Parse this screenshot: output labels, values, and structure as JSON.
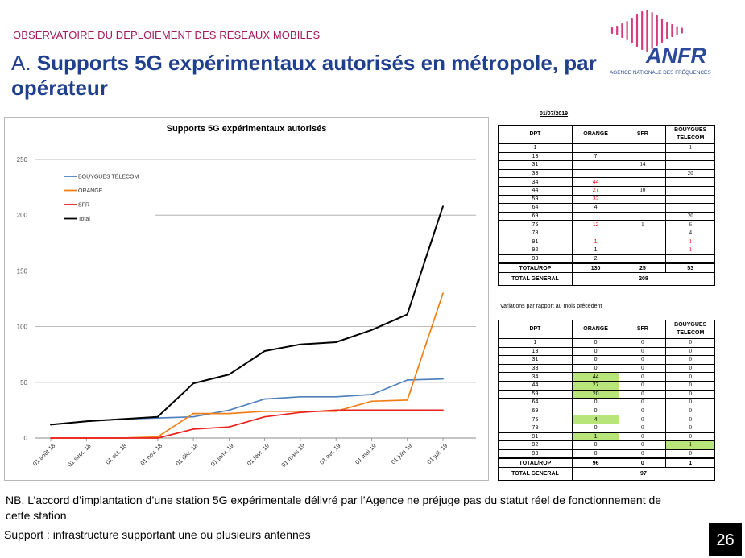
{
  "header": {
    "kicker": "OBSERVATOIRE DU DEPLOIEMENT DES RESEAUX MOBILES",
    "title_prefix": "A. ",
    "title_main": "Supports 5G expérimentaux autorisés en métropole, par opérateur"
  },
  "logo": {
    "text": "ANFR",
    "subtitle": "AGENCE NATIONALE DES FRÉQUENCES",
    "colors": {
      "bars": "#d63b7c",
      "text": "#2c4a9a"
    }
  },
  "chart_data": {
    "type": "line",
    "title": "Supports 5G expérimentaux autorisés",
    "xlabel": "",
    "ylabel": "",
    "ylim": [
      0,
      250
    ],
    "yticks": [
      "0",
      "50",
      "100",
      "150",
      "200",
      "250"
    ],
    "grid": true,
    "legend_position": "top-left",
    "categories": [
      "01 août 18",
      "01 sept. 18",
      "01 oct. 18",
      "01 nov. 18",
      "01 déc. 18",
      "01 janv. 19",
      "01 févr. 19",
      "01 mars 19",
      "01 avr. 19",
      "01 mai 19",
      "01 juin 19",
      "01 juil. 19"
    ],
    "series": [
      {
        "name": "BOUYGUES TELECOM",
        "color": "#4f81bd",
        "values": [
          12,
          15,
          17,
          18,
          19,
          25,
          35,
          37,
          37,
          39,
          52,
          53
        ]
      },
      {
        "name": "ORANGE",
        "color": "#f07f1a",
        "values": [
          0,
          0,
          0,
          1,
          22,
          22,
          24,
          24,
          24,
          33,
          34,
          130
        ]
      },
      {
        "name": "SFR",
        "color": "#e8211d",
        "values": [
          0,
          0,
          0,
          0,
          8,
          10,
          19,
          23,
          25,
          25,
          25,
          25
        ]
      },
      {
        "name": "Total",
        "color": "#000000",
        "values": [
          12,
          15,
          17,
          19,
          49,
          57,
          78,
          84,
          86,
          97,
          111,
          208
        ]
      }
    ]
  },
  "table1": {
    "date": "01/07/2019",
    "headers": [
      "DPT",
      "ORANGE",
      "SFR",
      "BOUYGUES TELECOM"
    ],
    "rows": [
      [
        "1",
        "",
        "",
        "1"
      ],
      [
        "13",
        "7",
        "",
        ""
      ],
      [
        "31",
        "",
        "14",
        ""
      ],
      [
        "33",
        "",
        "",
        "20"
      ],
      [
        "34",
        "44",
        "",
        ""
      ],
      [
        "44",
        "27",
        "10",
        ""
      ],
      [
        "59",
        "32",
        "",
        ""
      ],
      [
        "64",
        "4",
        "",
        ""
      ],
      [
        "69",
        "",
        "",
        "20"
      ],
      [
        "75",
        "12",
        "1",
        "6"
      ],
      [
        "78",
        "",
        "",
        "4"
      ],
      [
        "91",
        "1",
        "",
        "1"
      ],
      [
        "92",
        "1",
        "",
        "1"
      ],
      [
        "93",
        "2",
        "",
        ""
      ]
    ],
    "total_label": "TOTAL/ROP",
    "totals": [
      "130",
      "25",
      "53"
    ],
    "general_label": "TOTAL GENERAL",
    "general_value": "208"
  },
  "variation_note": "Variations par rapport au mois précédent",
  "table2": {
    "headers": [
      "DPT",
      "ORANGE",
      "SFR",
      "BOUYGUES TELECOM"
    ],
    "rows": [
      [
        "1",
        "0",
        "0",
        "0"
      ],
      [
        "13",
        "0",
        "0",
        "0"
      ],
      [
        "31",
        "0",
        "0",
        "0"
      ],
      [
        "33",
        "0",
        "0",
        "0"
      ],
      [
        "34",
        "44",
        "0",
        "0"
      ],
      [
        "44",
        "27",
        "0",
        "0"
      ],
      [
        "59",
        "20",
        "0",
        "0"
      ],
      [
        "64",
        "0",
        "0",
        "0"
      ],
      [
        "69",
        "0",
        "0",
        "0"
      ],
      [
        "75",
        "4",
        "0",
        "0"
      ],
      [
        "78",
        "0",
        "0",
        "0"
      ],
      [
        "91",
        "1",
        "0",
        "0"
      ],
      [
        "92",
        "0",
        "0",
        "1"
      ],
      [
        "93",
        "0",
        "0",
        "0"
      ]
    ],
    "total_label": "TOTAL/ROP",
    "totals": [
      "96",
      "0",
      "1"
    ],
    "general_label": "TOTAL GENERAL",
    "general_value": "97"
  },
  "footer": {
    "nb": "NB. L’accord d’implantation d’une station 5G expérimentale délivré par l’Agence ne préjuge pas du statut réel de fonctionnement de cette station.",
    "support": "Support : infrastructure supportant une ou plusieurs antennes",
    "page_number": "26"
  }
}
